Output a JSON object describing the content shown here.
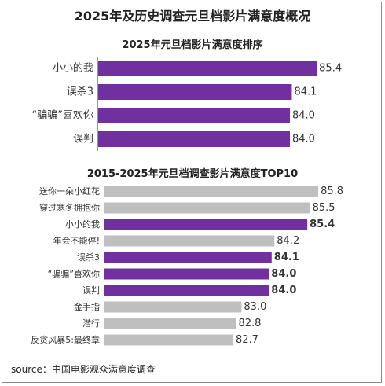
{
  "page": {
    "title": "2025年及历史调查元旦档影片满意度概况",
    "source": "source：中国电影观众满意度调查"
  },
  "colors": {
    "highlight": "#7030a0",
    "other": "#bfbfbf",
    "axis": "#999999"
  },
  "chart_data": [
    {
      "type": "bar",
      "orientation": "horizontal",
      "title": "2025年元旦档影片满意度排序",
      "categories": [
        "小小的我",
        "误杀3",
        "“骗骗”喜欢你",
        "误判"
      ],
      "values": [
        85.4,
        84.1,
        84.0,
        84.0
      ],
      "highlight": [
        true,
        true,
        true,
        true
      ],
      "value_labels": [
        "85.4",
        "84.1",
        "84.0",
        "84.0"
      ],
      "bold_labels": [
        false,
        false,
        false,
        false
      ],
      "xlim": [
        74,
        86.5
      ]
    },
    {
      "type": "bar",
      "orientation": "horizontal",
      "title": "2015-2025年元旦档调查影片满意度TOP10",
      "categories": [
        "送你一朵小红花",
        "穿过寒冬拥抱你",
        "小小的我",
        "年会不能停!",
        "误杀3",
        "“骗骗”喜欢你",
        "误判",
        "金手指",
        "潜行",
        "反贪风暴5:最终章"
      ],
      "values": [
        85.8,
        85.5,
        85.4,
        84.2,
        84.1,
        84.0,
        84.0,
        83.0,
        82.8,
        82.7
      ],
      "highlight": [
        false,
        false,
        true,
        false,
        true,
        true,
        true,
        false,
        false,
        false
      ],
      "value_labels": [
        "85.8",
        "85.5",
        "85.4",
        "84.2",
        "84.1",
        "84.0",
        "84.0",
        "83.0",
        "82.8",
        "82.7"
      ],
      "bold_labels": [
        false,
        false,
        true,
        false,
        true,
        true,
        true,
        false,
        false,
        false
      ],
      "xlim": [
        78,
        86.6
      ]
    }
  ]
}
